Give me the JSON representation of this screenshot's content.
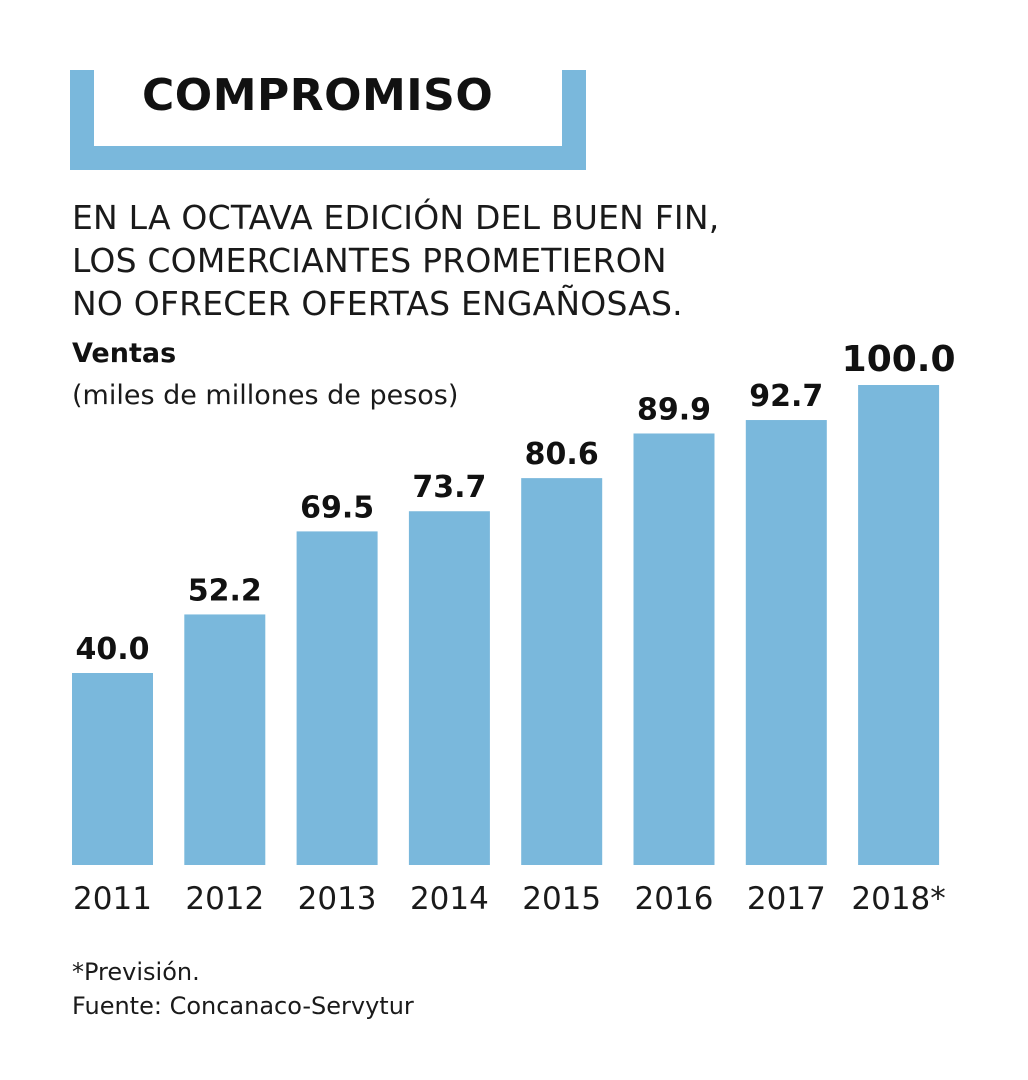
{
  "header": {
    "title": "COMPROMISO"
  },
  "subtitle": {
    "lines": [
      "EN LA OCTAVA EDICIÓN DEL BUEN FIN,",
      "LOS COMERCIANTES PROMETIERON",
      "NO OFRECER OFERTAS ENGAÑOSAS."
    ]
  },
  "chart_data": {
    "type": "bar",
    "title": "Ventas",
    "ylabel": "(miles de millones de pesos)",
    "categories": [
      "2011",
      "2012",
      "2013",
      "2014",
      "2015",
      "2016",
      "2017",
      "2018*"
    ],
    "values": [
      40.0,
      52.2,
      69.5,
      73.7,
      80.6,
      89.9,
      92.7,
      100.0
    ],
    "value_labels": [
      "40.0",
      "52.2",
      "69.5",
      "73.7",
      "80.6",
      "89.9",
      "92.7",
      "100.0"
    ],
    "ylim": [
      0,
      110
    ],
    "grid": false,
    "bar_color": "#7ab8dc"
  },
  "footnote": {
    "note": "*Previsión.",
    "source": "Fuente: Concanaco-Servytur"
  }
}
